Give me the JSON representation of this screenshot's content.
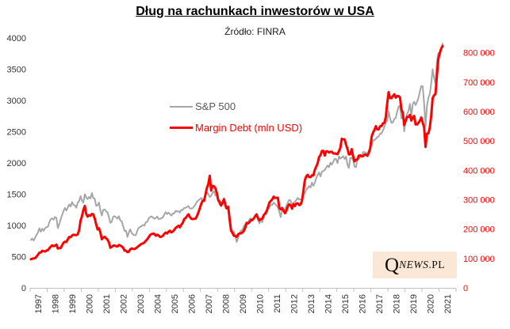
{
  "title": "Dług na rachunkach inwestorów w USA",
  "subtitle": "Źródło: FINRA",
  "logo": {
    "q": "Q",
    "news": "NEWS",
    "pl": ".PL",
    "bg": "#FAE7D5"
  },
  "chart_data": {
    "type": "line",
    "title": "Dług na rachunkach inwestorów w USA",
    "subtitle": "Źródło: FINRA",
    "grid": false,
    "legend_position": "inside-top-left-of-plot",
    "x_axis": {
      "tick_labels": [
        "1997",
        "1998",
        "1999",
        "2000",
        "2001",
        "2002",
        "2003",
        "2004",
        "2005",
        "2006",
        "2007",
        "2008",
        "2009",
        "2010",
        "2011",
        "2012",
        "2013",
        "2014",
        "2015",
        "2016",
        "2017",
        "2018",
        "2019",
        "2020",
        "2021"
      ],
      "label_rotation_deg": -90,
      "axis_color": "#BFBFBF",
      "label_color": "#333333"
    },
    "left_axis": {
      "min": 0,
      "max": 4000,
      "ticks": [
        0,
        500,
        1000,
        1500,
        2000,
        2500,
        3000,
        3500,
        4000
      ],
      "label_color": "#333333"
    },
    "right_axis": {
      "min": 0,
      "max": 850000,
      "ticks": [
        0,
        100000,
        200000,
        300000,
        400000,
        500000,
        600000,
        700000,
        800000
      ],
      "tick_labels": [
        "0",
        "100 000",
        "200 000",
        "300 000",
        "400 000",
        "500 000",
        "600 000",
        "700 000",
        "800 000"
      ],
      "label_color": "#FF0000"
    },
    "x_start_year": 1997,
    "x_step_years": 0.0833333,
    "series": [
      {
        "name": "S&P 500",
        "axis": "left",
        "color": "#A6A6A6",
        "line_width": 2,
        "values": [
          766,
          790,
          757,
          801,
          848,
          885,
          954,
          899,
          947,
          914,
          955,
          970,
          980,
          1049,
          1101,
          1112,
          1091,
          1134,
          1121,
          957,
          1017,
          1099,
          1164,
          1229,
          1280,
          1238,
          1286,
          1335,
          1302,
          1373,
          1329,
          1320,
          1283,
          1363,
          1389,
          1469,
          1394,
          1366,
          1499,
          1452,
          1421,
          1455,
          1431,
          1518,
          1437,
          1429,
          1315,
          1320,
          1366,
          1240,
          1160,
          1249,
          1256,
          1224,
          1211,
          1134,
          1041,
          1060,
          1139,
          1148,
          1130,
          1107,
          1147,
          1077,
          1067,
          990,
          912,
          916,
          815,
          886,
          936,
          880,
          856,
          841,
          848,
          917,
          964,
          975,
          990,
          1008,
          996,
          1051,
          1058,
          1112,
          1131,
          1145,
          1126,
          1107,
          1121,
          1141,
          1102,
          1104,
          1115,
          1130,
          1174,
          1212,
          1181,
          1204,
          1181,
          1157,
          1192,
          1191,
          1234,
          1220,
          1229,
          1207,
          1249,
          1248,
          1280,
          1281,
          1295,
          1311,
          1270,
          1270,
          1277,
          1304,
          1336,
          1378,
          1401,
          1418,
          1438,
          1407,
          1421,
          1482,
          1531,
          1503,
          1455,
          1474,
          1527,
          1549,
          1481,
          1468,
          1379,
          1331,
          1323,
          1386,
          1400,
          1280,
          1267,
          1283,
          1165,
          969,
          896,
          903,
          826,
          735,
          798,
          873,
          919,
          926,
          987,
          1021,
          1057,
          1036,
          1096,
          1115,
          1074,
          1104,
          1169,
          1187,
          1089,
          1031,
          1102,
          1049,
          1141,
          1183,
          1181,
          1258,
          1286,
          1327,
          1326,
          1364,
          1345,
          1321,
          1292,
          1219,
          1131,
          1253,
          1247,
          1258,
          1312,
          1366,
          1408,
          1398,
          1310,
          1362,
          1379,
          1407,
          1441,
          1412,
          1416,
          1426,
          1498,
          1515,
          1569,
          1598,
          1631,
          1606,
          1686,
          1633,
          1682,
          1757,
          1806,
          1848,
          1783,
          1859,
          1872,
          1884,
          1924,
          1960,
          1931,
          2003,
          1972,
          2018,
          2068,
          2059,
          1995,
          2105,
          2068,
          2086,
          2107,
          2063,
          2104,
          1972,
          1920,
          2079,
          2080,
          2044,
          1940,
          1932,
          2060,
          2065,
          2097,
          2099,
          2174,
          2171,
          2168,
          2126,
          2199,
          2239,
          2279,
          2364,
          2363,
          2384,
          2412,
          2423,
          2470,
          2472,
          2519,
          2575,
          2648,
          2674,
          2824,
          2714,
          2641,
          2648,
          2705,
          2718,
          2816,
          2902,
          2914,
          2712,
          2760,
          2507,
          2704,
          2784,
          2834,
          2946,
          2752,
          2942,
          2980,
          2926,
          2977,
          3038,
          3141,
          3231,
          3226,
          2954,
          2585,
          2912,
          3044,
          3100,
          3271,
          3500,
          3363,
          3270,
          3622,
          3756,
          3714,
          3811,
          3910
        ]
      },
      {
        "name": "Margin Debt (mln USD)",
        "axis": "right",
        "color": "#FF0000",
        "line_width": 3,
        "values": [
          97400,
          99000,
          100200,
          101000,
          106300,
          113000,
          119900,
          120300,
          126100,
          124900,
          123500,
          126900,
          128500,
          134400,
          140100,
          144600,
          142000,
          143400,
          147300,
          133900,
          135200,
          135500,
          144700,
          153600,
          157300,
          156000,
          164800,
          173100,
          172100,
          178100,
          180900,
          179600,
          179400,
          182300,
          195600,
          228500,
          243500,
          265200,
          278500,
          251700,
          242200,
          247100,
          245300,
          251400,
          250100,
          235800,
          216600,
          198800,
          202900,
          188200,
          165300,
          171500,
          173600,
          168500,
          164000,
          154800,
          136700,
          139400,
          143500,
          144300,
          141600,
          140700,
          146100,
          143900,
          140800,
          136700,
          126800,
          126700,
          121600,
          123000,
          131300,
          134200,
          132900,
          131800,
          135100,
          138700,
          142400,
          146400,
          149900,
          151400,
          154600,
          160200,
          165400,
          172800,
          179900,
          183000,
          184200,
          184000,
          177400,
          181000,
          178000,
          173400,
          174100,
          177300,
          184000,
          188200,
          185100,
          191200,
          194100,
          188600,
          191800,
          197100,
          204100,
          207300,
          211700,
          205900,
          214500,
          221400,
          233900,
          237600,
          244100,
          250400,
          240900,
          235400,
          233700,
          235100,
          235300,
          244100,
          256500,
          270500,
          285600,
          295900,
          295900,
          317700,
          340300,
          353000,
          381400,
          331100,
          347000,
          345400,
          339000,
          322800,
          298200,
          293200,
          279800,
          289400,
          302000,
          283000,
          270400,
          275900,
          233000,
          195100,
          187100,
          177200,
          176900,
          173300,
          182200,
          185200,
          185400,
          188400,
          193600,
          204500,
          220200,
          219300,
          223500,
          230200,
          231100,
          236000,
          243000,
          249400,
          237400,
          230000,
          233600,
          235200,
          247000,
          252600,
          260700,
          274000,
          290000,
          295800,
          300900,
          310300,
          305900,
          306200,
          306800,
          272200,
          267200,
          271800,
          262700,
          254000,
          262800,
          277200,
          284200,
          279900,
          269200,
          284600,
          278400,
          286700,
          287400,
          281600,
          283400,
          296300,
          330900,
          366100,
          379500,
          384400,
          377000,
          376600,
          382900,
          382400,
          401200,
          412500,
          423700,
          444900,
          451300,
          465700,
          466100,
          450000,
          464000,
          464300,
          460200,
          463000,
          463000,
          457200,
          457300,
          456300,
          454800,
          464900,
          476400,
          507200,
          505100,
          505000,
          487000,
          473400,
          453900,
          454500,
          472000,
          447400,
          430200,
          435800,
          436700,
          449700,
          451000,
          447300,
          447900,
          453300,
          453100,
          449200,
          458600,
          473600,
          513300,
          528200,
          536900,
          549900,
          539100,
          539300,
          549900,
          550300,
          559600,
          561400,
          580900,
          627900,
          665700,
          645500,
          645200,
          652300,
          658500,
          647100,
          652400,
          652300,
          647900,
          607600,
          595100,
          554300,
          568200,
          581300,
          581200,
          588500,
          569000,
          579200,
          584700,
          555900,
          556000,
          561100,
          568700,
          579500,
          562100,
          545700,
          479300,
          524700,
          525200,
          545000,
          585700,
          645500,
          654900,
          659300,
          722100,
          778400,
          798600,
          813500,
          822600
        ]
      }
    ]
  }
}
